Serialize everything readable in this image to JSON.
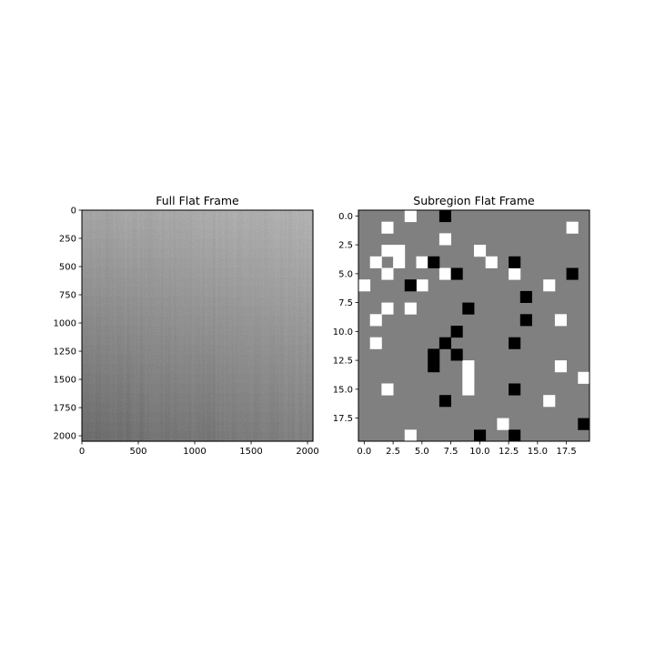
{
  "chart_data": [
    {
      "type": "heatmap",
      "title": "Full Flat Frame",
      "colormap": "gray",
      "shape": [
        2048,
        2048
      ],
      "xlim": [
        0,
        2048
      ],
      "ylim": [
        2048,
        0
      ],
      "xticks": [
        0,
        500,
        1000,
        1500,
        2000
      ],
      "yticks": [
        0,
        250,
        500,
        750,
        1000,
        1250,
        1500,
        1750,
        2000
      ],
      "xtick_labels": [
        "0",
        "500",
        "1000",
        "1500",
        "2000"
      ],
      "ytick_labels": [
        "0",
        "250",
        "500",
        "750",
        "1000",
        "1250",
        "1500",
        "1750",
        "2000"
      ],
      "gradient": "brighter toward top-right, darker toward bottom-left",
      "brightness_corners": {
        "top_left": 0.6,
        "top_right": 0.68,
        "bottom_left": 0.28,
        "bottom_right": 0.4
      },
      "noise": "fine per-pixel noise with faint vertical column striping"
    },
    {
      "type": "heatmap",
      "title": "Subregion Flat Frame",
      "colormap": "gray",
      "shape": [
        20,
        20
      ],
      "xlim": [
        -0.5,
        19.5
      ],
      "ylim": [
        19.5,
        -0.5
      ],
      "xticks": [
        0,
        2.5,
        5,
        7.5,
        10,
        12.5,
        15,
        17.5
      ],
      "yticks": [
        0,
        2.5,
        5,
        7.5,
        10,
        12.5,
        15,
        17.5
      ],
      "xtick_labels": [
        "0.0",
        "2.5",
        "5.0",
        "7.5",
        "10.0",
        "12.5",
        "15.0",
        "17.5"
      ],
      "ytick_labels": [
        "0.0",
        "2.5",
        "5.0",
        "7.5",
        "10.0",
        "12.5",
        "15.0",
        "17.5"
      ],
      "background_level": "mid-gray",
      "white_pixels": [
        [
          0,
          4
        ],
        [
          1,
          2
        ],
        [
          1,
          18
        ],
        [
          2,
          7
        ],
        [
          3,
          2
        ],
        [
          3,
          3
        ],
        [
          3,
          10
        ],
        [
          4,
          1
        ],
        [
          4,
          3
        ],
        [
          4,
          5
        ],
        [
          4,
          11
        ],
        [
          5,
          2
        ],
        [
          5,
          7
        ],
        [
          5,
          13
        ],
        [
          6,
          0
        ],
        [
          6,
          5
        ],
        [
          6,
          16
        ],
        [
          8,
          2
        ],
        [
          8,
          4
        ],
        [
          9,
          1
        ],
        [
          9,
          17
        ],
        [
          11,
          1
        ],
        [
          13,
          9
        ],
        [
          13,
          17
        ],
        [
          14,
          9
        ],
        [
          14,
          19
        ],
        [
          15,
          2
        ],
        [
          15,
          9
        ],
        [
          16,
          16
        ],
        [
          18,
          12
        ],
        [
          19,
          4
        ]
      ],
      "black_pixels": [
        [
          0,
          7
        ],
        [
          4,
          6
        ],
        [
          4,
          13
        ],
        [
          5,
          8
        ],
        [
          5,
          18
        ],
        [
          6,
          4
        ],
        [
          7,
          14
        ],
        [
          8,
          9
        ],
        [
          9,
          14
        ],
        [
          10,
          8
        ],
        [
          11,
          7
        ],
        [
          11,
          13
        ],
        [
          12,
          6
        ],
        [
          12,
          8
        ],
        [
          13,
          6
        ],
        [
          15,
          13
        ],
        [
          16,
          7
        ],
        [
          19,
          10
        ],
        [
          19,
          13
        ],
        [
          18,
          19
        ]
      ]
    }
  ]
}
